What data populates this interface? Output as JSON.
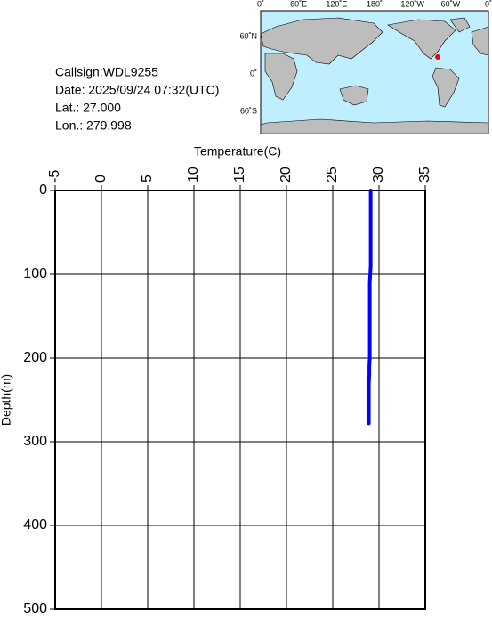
{
  "header": {
    "callsign": "Callsign:WDL9255",
    "date": "Date:  2025/09/24 07:32(UTC)",
    "lat": "Lat.:   27.000",
    "lon": "Lon.:  279.998"
  },
  "map": {
    "lon_labels": [
      "0˚",
      "60˚E",
      "120˚E",
      "180˚",
      "120˚W",
      "60˚W",
      "0˚"
    ],
    "lat_labels": [
      "60˚N",
      "0˚",
      "60˚S"
    ]
  },
  "chart_data": {
    "type": "line",
    "x_label": "Temperature(C)",
    "y_label": "Depth(m)",
    "xlim": [
      -5,
      35
    ],
    "xticks": [
      -5,
      0,
      5,
      10,
      15,
      20,
      25,
      30,
      35
    ],
    "ylim": [
      0,
      500
    ],
    "yticks": [
      0,
      100,
      200,
      300,
      400,
      500
    ],
    "y_inverted": true,
    "grid": true,
    "series": [
      {
        "color": "#0000ff",
        "x": [
          29.1,
          29.1,
          29.1,
          29.1,
          29.1,
          29.1,
          29.1,
          29.1,
          29.1,
          29.1,
          29.05,
          29.0,
          29.0,
          29.0,
          29.0,
          29.0,
          29.0,
          29.0,
          29.0,
          29.0,
          29.0,
          28.95,
          28.95,
          28.9,
          28.9,
          28.9,
          28.9,
          28.9,
          28.9
        ],
        "values": [
          0,
          10,
          20,
          30,
          40,
          50,
          60,
          70,
          80,
          90,
          100,
          110,
          120,
          130,
          140,
          150,
          160,
          170,
          180,
          190,
          200,
          210,
          220,
          230,
          240,
          250,
          260,
          270,
          278
        ]
      }
    ]
  }
}
